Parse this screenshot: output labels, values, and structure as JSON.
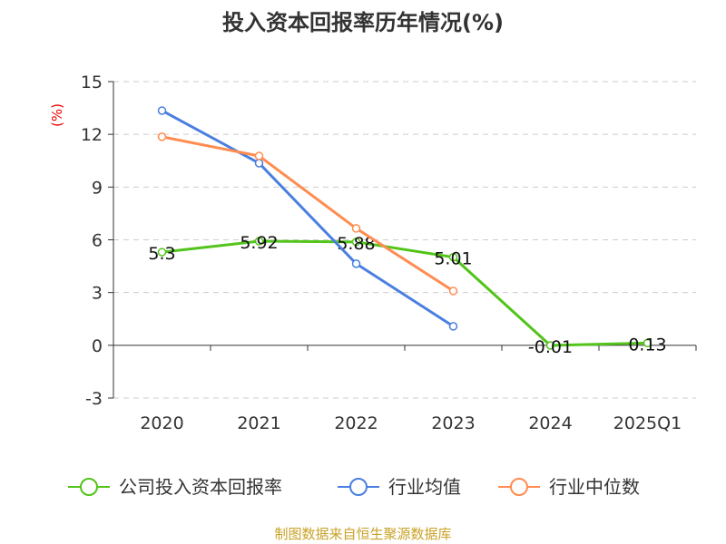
{
  "chart_data": {
    "type": "line",
    "title": "投入资本回报率历年情况(%)",
    "ylabel": "(%)",
    "categories": [
      "2020",
      "2021",
      "2022",
      "2023",
      "2024",
      "2025Q1"
    ],
    "ylim": [
      -3,
      15
    ],
    "yticks": [
      -3,
      0,
      3,
      6,
      9,
      12,
      15
    ],
    "grid": true,
    "legend_position": "bottom",
    "series": [
      {
        "name": "公司投入资本回报率",
        "color": "#52c41a",
        "values": [
          5.3,
          5.92,
          5.88,
          5.01,
          -0.01,
          0.13
        ],
        "labels": [
          "5.3",
          "5.92",
          "5.88",
          "5.01",
          "-0.01",
          "0.13"
        ]
      },
      {
        "name": "行业均值",
        "color": "#4a7fe0",
        "values": [
          13.35,
          10.36,
          4.64,
          1.08,
          null,
          null
        ]
      },
      {
        "name": "行业中位数",
        "color": "#ff8c50",
        "values": [
          11.86,
          10.77,
          6.65,
          3.09,
          null,
          null
        ]
      }
    ]
  },
  "footer": "制图数据来自恒生聚源数据库"
}
